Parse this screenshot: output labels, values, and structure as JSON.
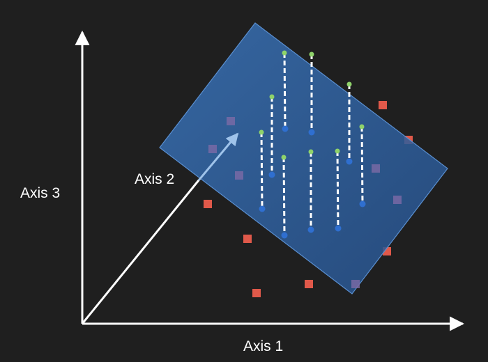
{
  "labels": {
    "axis1": "Axis  1",
    "axis2": "Axis  2",
    "axis3": "Axis  3"
  },
  "colors": {
    "background": "#1f1f1f",
    "axis": "#ffffff",
    "plane_fill": "#2f5f9e",
    "plane_stroke": "#5a8fd0",
    "point_off_plane": "#e0594a",
    "point_behind_plane": "#7d6aa6",
    "point_projected": "#2f6fd0",
    "point_original": "#8fd36a",
    "projection_line": "#ffffff",
    "axis2_arrow": "#9fc3ea"
  }
}
